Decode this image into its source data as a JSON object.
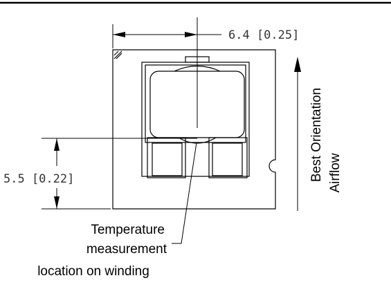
{
  "dimensions": {
    "width": "6.4 [0.25]",
    "height": "5.5 [0.22]"
  },
  "callout": {
    "lines": [
      "Temperature",
      "measurement",
      "location on winding"
    ]
  },
  "airflow": {
    "lines": [
      "Best Orientation",
      "Airflow"
    ]
  }
}
